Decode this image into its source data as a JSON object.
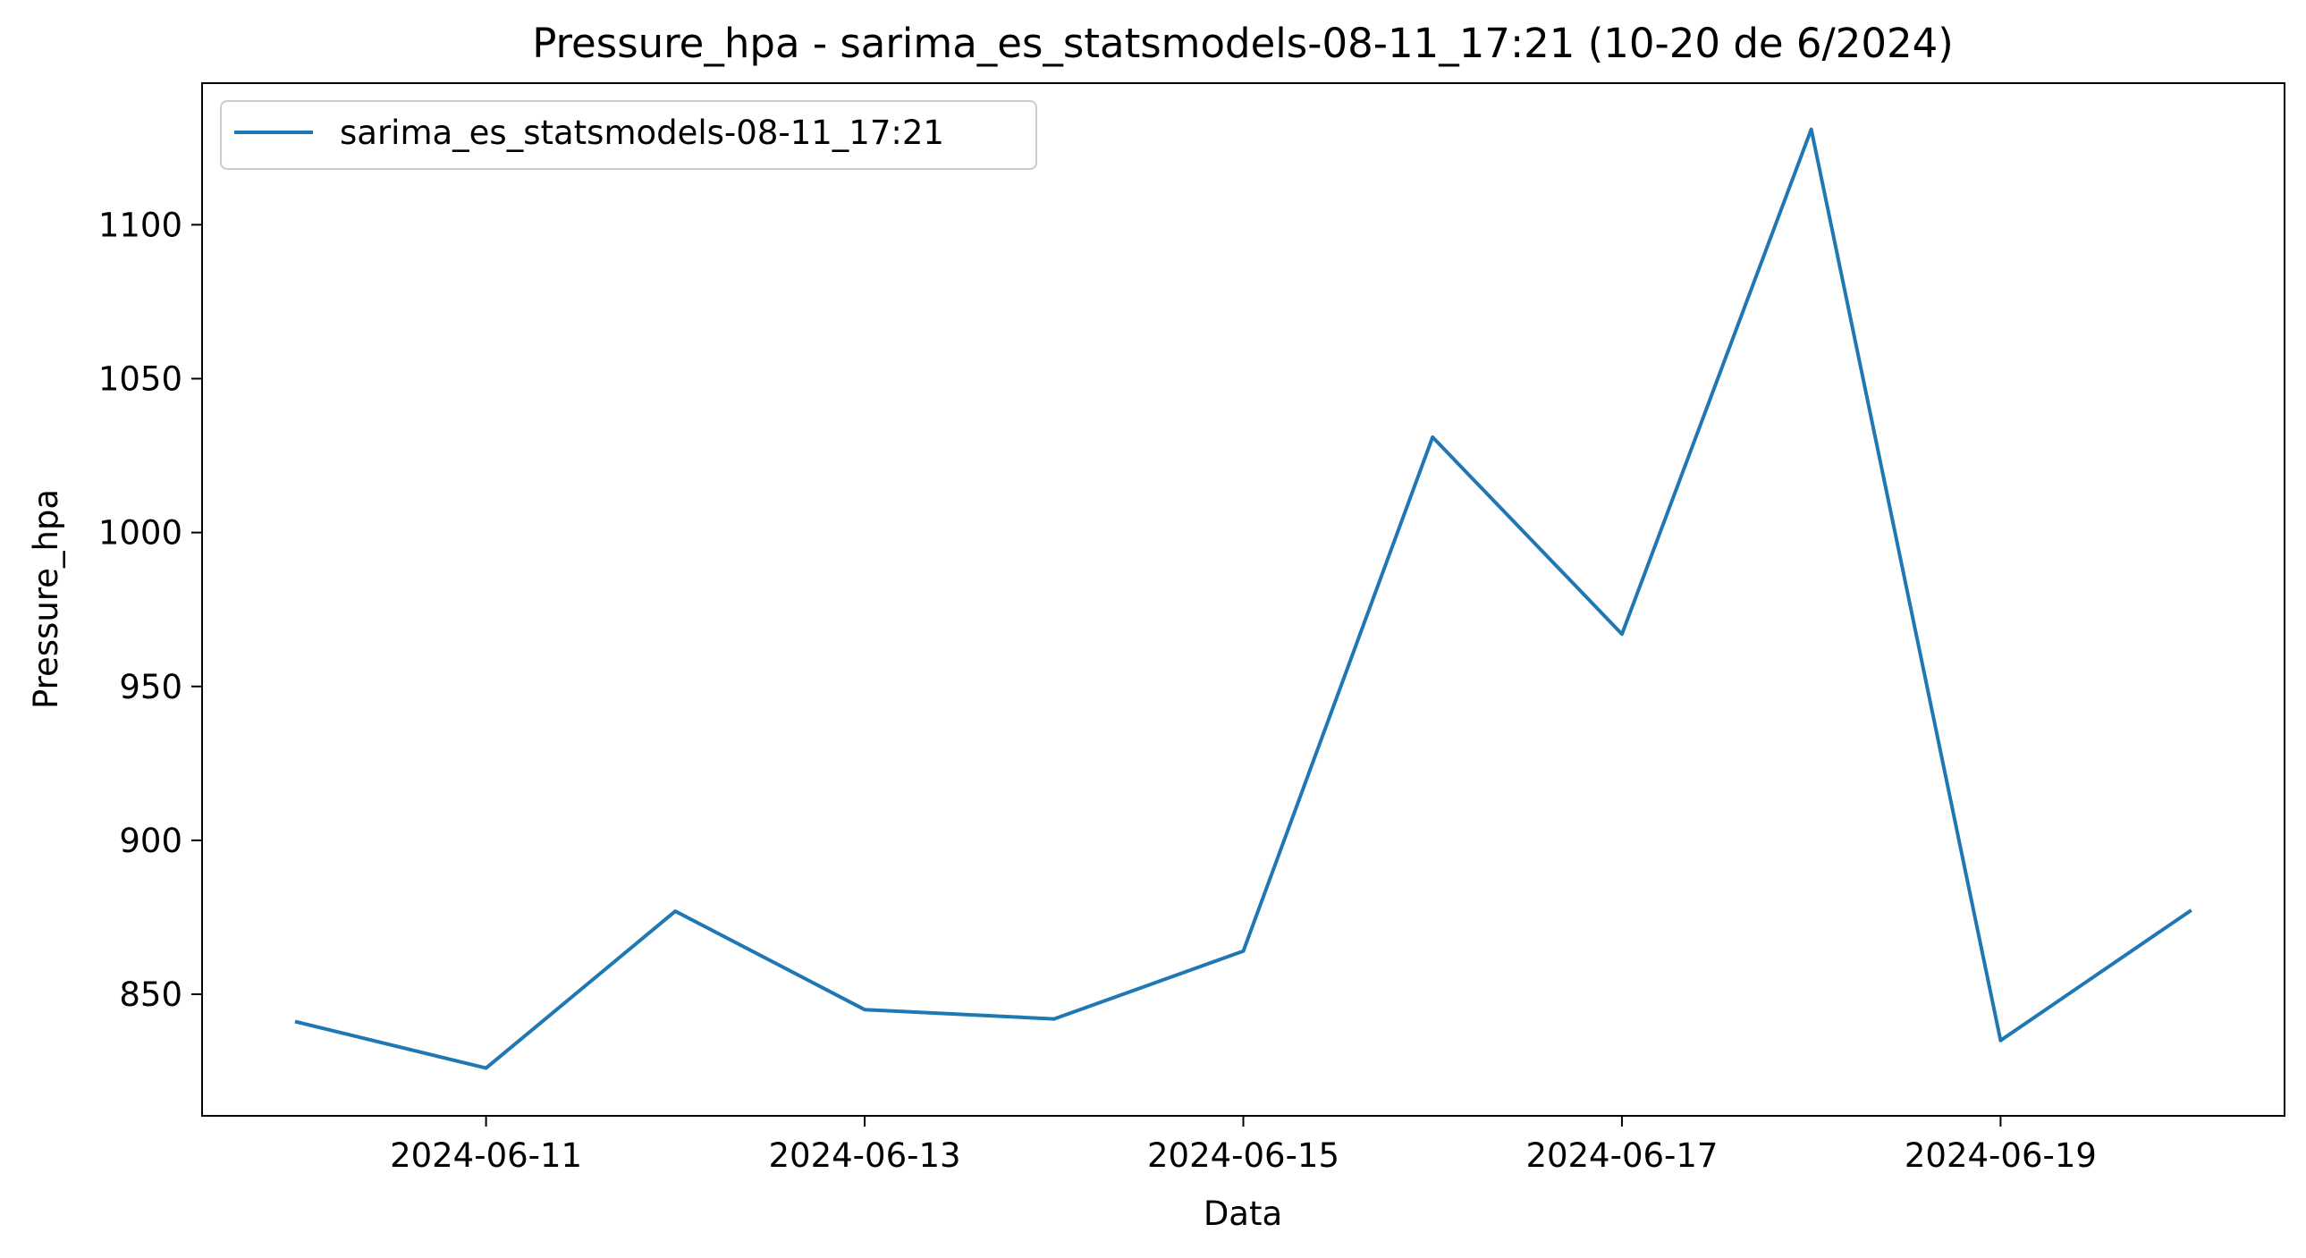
{
  "chart_data": {
    "type": "line",
    "title": "Pressure_hpa - sarima_es_statsmodels-08-11_17:21 (10-20 de 6/2024)",
    "xlabel": "Data",
    "ylabel": "Pressure_hpa",
    "x": [
      "2024-06-10",
      "2024-06-11",
      "2024-06-12",
      "2024-06-13",
      "2024-06-14",
      "2024-06-15",
      "2024-06-16",
      "2024-06-17",
      "2024-06-18",
      "2024-06-19",
      "2024-06-20"
    ],
    "series": [
      {
        "name": "sarima_es_statsmodels-08-11_17:21",
        "color": "#1f77b4",
        "values": [
          841,
          826,
          877,
          845,
          842,
          864,
          1031,
          967,
          1131,
          835,
          877
        ]
      }
    ],
    "xticks": [
      "2024-06-11",
      "2024-06-13",
      "2024-06-15",
      "2024-06-17",
      "2024-06-19"
    ],
    "yticks": [
      850,
      900,
      950,
      1000,
      1050,
      1100
    ],
    "ylim": [
      810.5,
      1146
    ],
    "xlim": [
      "2024-06-09 12:00",
      "2024-06-20 12:00"
    ],
    "grid": false,
    "legend": "upper-left"
  }
}
